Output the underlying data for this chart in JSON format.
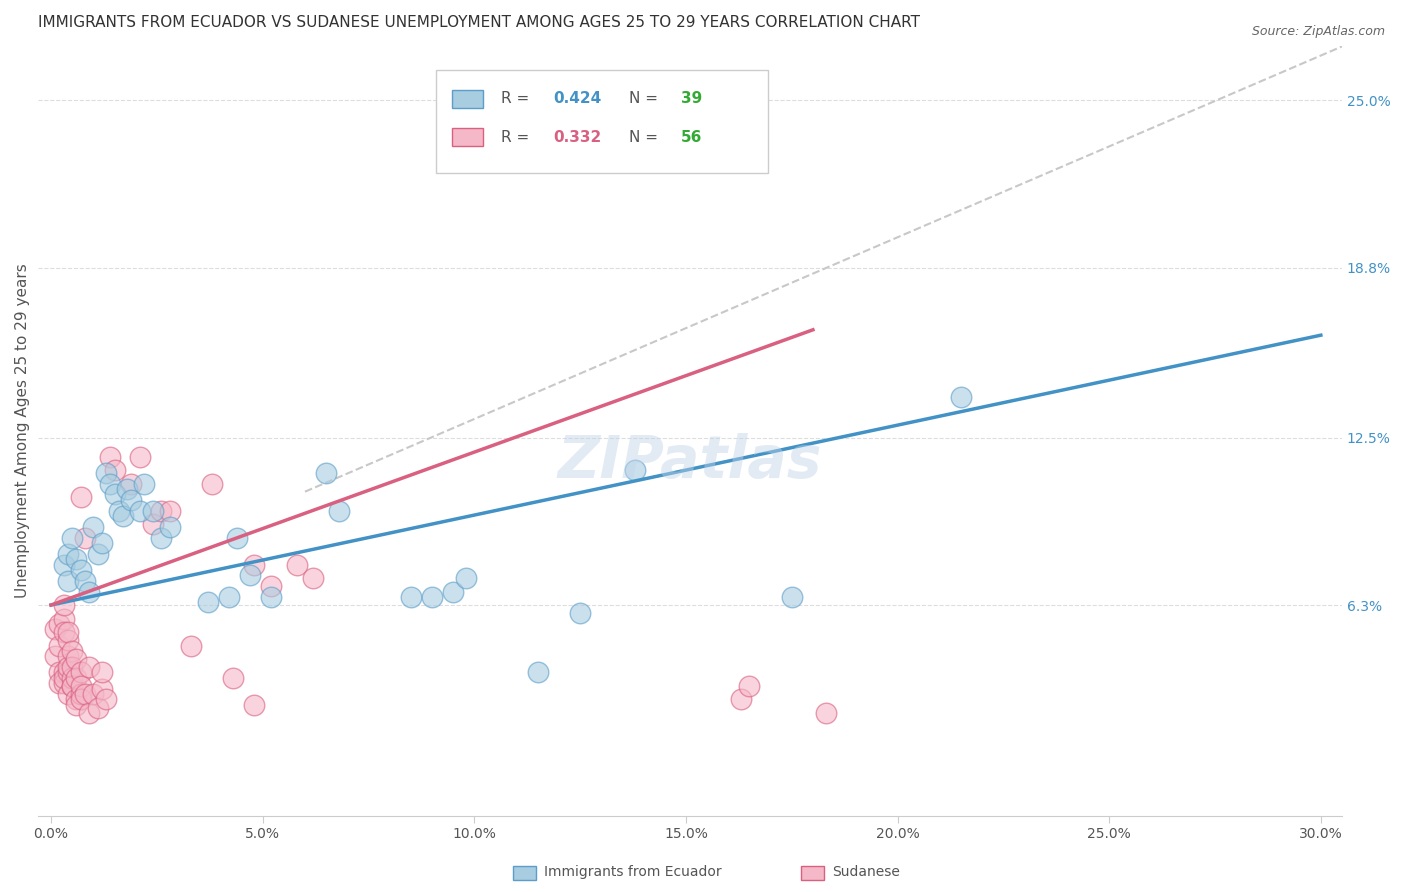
{
  "title": "IMMIGRANTS FROM ECUADOR VS SUDANESE UNEMPLOYMENT AMONG AGES 25 TO 29 YEARS CORRELATION CHART",
  "source": "Source: ZipAtlas.com",
  "xlabel_ticks": [
    "0.0%",
    "5.0%",
    "10.0%",
    "15.0%",
    "20.0%",
    "25.0%",
    "30.0%"
  ],
  "xlabel_vals": [
    0.0,
    0.05,
    0.1,
    0.15,
    0.2,
    0.25,
    0.3
  ],
  "ylabel": "Unemployment Among Ages 25 to 29 years",
  "ylabel_ticks_labels": [
    "6.3%",
    "12.5%",
    "18.8%",
    "25.0%"
  ],
  "ylabel_ticks_vals": [
    0.063,
    0.125,
    0.188,
    0.25
  ],
  "xlim": [
    -0.003,
    0.305
  ],
  "ylim": [
    -0.015,
    0.27
  ],
  "blue_trendline_x": [
    0.0,
    0.3
  ],
  "blue_trendline_y": [
    0.063,
    0.163
  ],
  "pink_trendline_x": [
    0.0,
    0.18
  ],
  "pink_trendline_y": [
    0.063,
    0.165
  ],
  "dashed_line_x": [
    0.06,
    0.305
  ],
  "dashed_line_y": [
    0.105,
    0.27
  ],
  "blue_color": "#a8cce0",
  "blue_edge_color": "#5b9ec9",
  "pink_color": "#f5b8c8",
  "pink_edge_color": "#d96080",
  "blue_line_color": "#4292c6",
  "pink_line_color": "#d96080",
  "dashed_color": "#c8c8c8",
  "grid_color": "#dddddd",
  "background_color": "#ffffff",
  "blue_scatter": [
    [
      0.003,
      0.078
    ],
    [
      0.004,
      0.082
    ],
    [
      0.004,
      0.072
    ],
    [
      0.005,
      0.088
    ],
    [
      0.006,
      0.08
    ],
    [
      0.007,
      0.076
    ],
    [
      0.008,
      0.072
    ],
    [
      0.009,
      0.068
    ],
    [
      0.01,
      0.092
    ],
    [
      0.011,
      0.082
    ],
    [
      0.012,
      0.086
    ],
    [
      0.013,
      0.112
    ],
    [
      0.014,
      0.108
    ],
    [
      0.015,
      0.104
    ],
    [
      0.016,
      0.098
    ],
    [
      0.017,
      0.096
    ],
    [
      0.018,
      0.106
    ],
    [
      0.019,
      0.102
    ],
    [
      0.021,
      0.098
    ],
    [
      0.022,
      0.108
    ],
    [
      0.024,
      0.098
    ],
    [
      0.026,
      0.088
    ],
    [
      0.028,
      0.092
    ],
    [
      0.037,
      0.064
    ],
    [
      0.042,
      0.066
    ],
    [
      0.044,
      0.088
    ],
    [
      0.047,
      0.074
    ],
    [
      0.052,
      0.066
    ],
    [
      0.065,
      0.112
    ],
    [
      0.068,
      0.098
    ],
    [
      0.085,
      0.066
    ],
    [
      0.09,
      0.066
    ],
    [
      0.095,
      0.068
    ],
    [
      0.098,
      0.073
    ],
    [
      0.115,
      0.038
    ],
    [
      0.125,
      0.06
    ],
    [
      0.138,
      0.113
    ],
    [
      0.175,
      0.066
    ],
    [
      0.215,
      0.14
    ]
  ],
  "pink_scatter": [
    [
      0.001,
      0.054
    ],
    [
      0.001,
      0.044
    ],
    [
      0.002,
      0.056
    ],
    [
      0.002,
      0.038
    ],
    [
      0.002,
      0.048
    ],
    [
      0.002,
      0.034
    ],
    [
      0.003,
      0.058
    ],
    [
      0.003,
      0.038
    ],
    [
      0.003,
      0.034
    ],
    [
      0.003,
      0.036
    ],
    [
      0.003,
      0.053
    ],
    [
      0.003,
      0.063
    ],
    [
      0.004,
      0.044
    ],
    [
      0.004,
      0.05
    ],
    [
      0.004,
      0.03
    ],
    [
      0.004,
      0.038
    ],
    [
      0.004,
      0.04
    ],
    [
      0.004,
      0.053
    ],
    [
      0.005,
      0.033
    ],
    [
      0.005,
      0.036
    ],
    [
      0.005,
      0.046
    ],
    [
      0.005,
      0.04
    ],
    [
      0.005,
      0.033
    ],
    [
      0.006,
      0.028
    ],
    [
      0.006,
      0.043
    ],
    [
      0.006,
      0.026
    ],
    [
      0.006,
      0.036
    ],
    [
      0.007,
      0.03
    ],
    [
      0.007,
      0.038
    ],
    [
      0.007,
      0.033
    ],
    [
      0.007,
      0.028
    ],
    [
      0.007,
      0.103
    ],
    [
      0.008,
      0.088
    ],
    [
      0.008,
      0.03
    ],
    [
      0.009,
      0.04
    ],
    [
      0.009,
      0.023
    ],
    [
      0.01,
      0.03
    ],
    [
      0.011,
      0.025
    ],
    [
      0.012,
      0.032
    ],
    [
      0.012,
      0.038
    ],
    [
      0.013,
      0.028
    ],
    [
      0.014,
      0.118
    ],
    [
      0.015,
      0.113
    ],
    [
      0.019,
      0.108
    ],
    [
      0.021,
      0.118
    ],
    [
      0.024,
      0.093
    ],
    [
      0.026,
      0.098
    ],
    [
      0.028,
      0.098
    ],
    [
      0.038,
      0.108
    ],
    [
      0.048,
      0.078
    ],
    [
      0.052,
      0.07
    ],
    [
      0.058,
      0.078
    ],
    [
      0.062,
      0.073
    ],
    [
      0.033,
      0.048
    ],
    [
      0.043,
      0.036
    ],
    [
      0.048,
      0.026
    ],
    [
      0.163,
      0.028
    ],
    [
      0.183,
      0.023
    ],
    [
      0.165,
      0.033
    ]
  ],
  "title_fontsize": 11,
  "axis_label_fontsize": 11,
  "tick_fontsize": 10,
  "right_tick_color": "#4292c6",
  "legend_fontsize": 11,
  "watermark": "ZIPatlas",
  "watermark_fontsize": 42,
  "watermark_color": "#c0d4e8",
  "watermark_alpha": 0.45,
  "legend_blue_label": "Immigrants from Ecuador",
  "legend_pink_label": "Sudanese"
}
